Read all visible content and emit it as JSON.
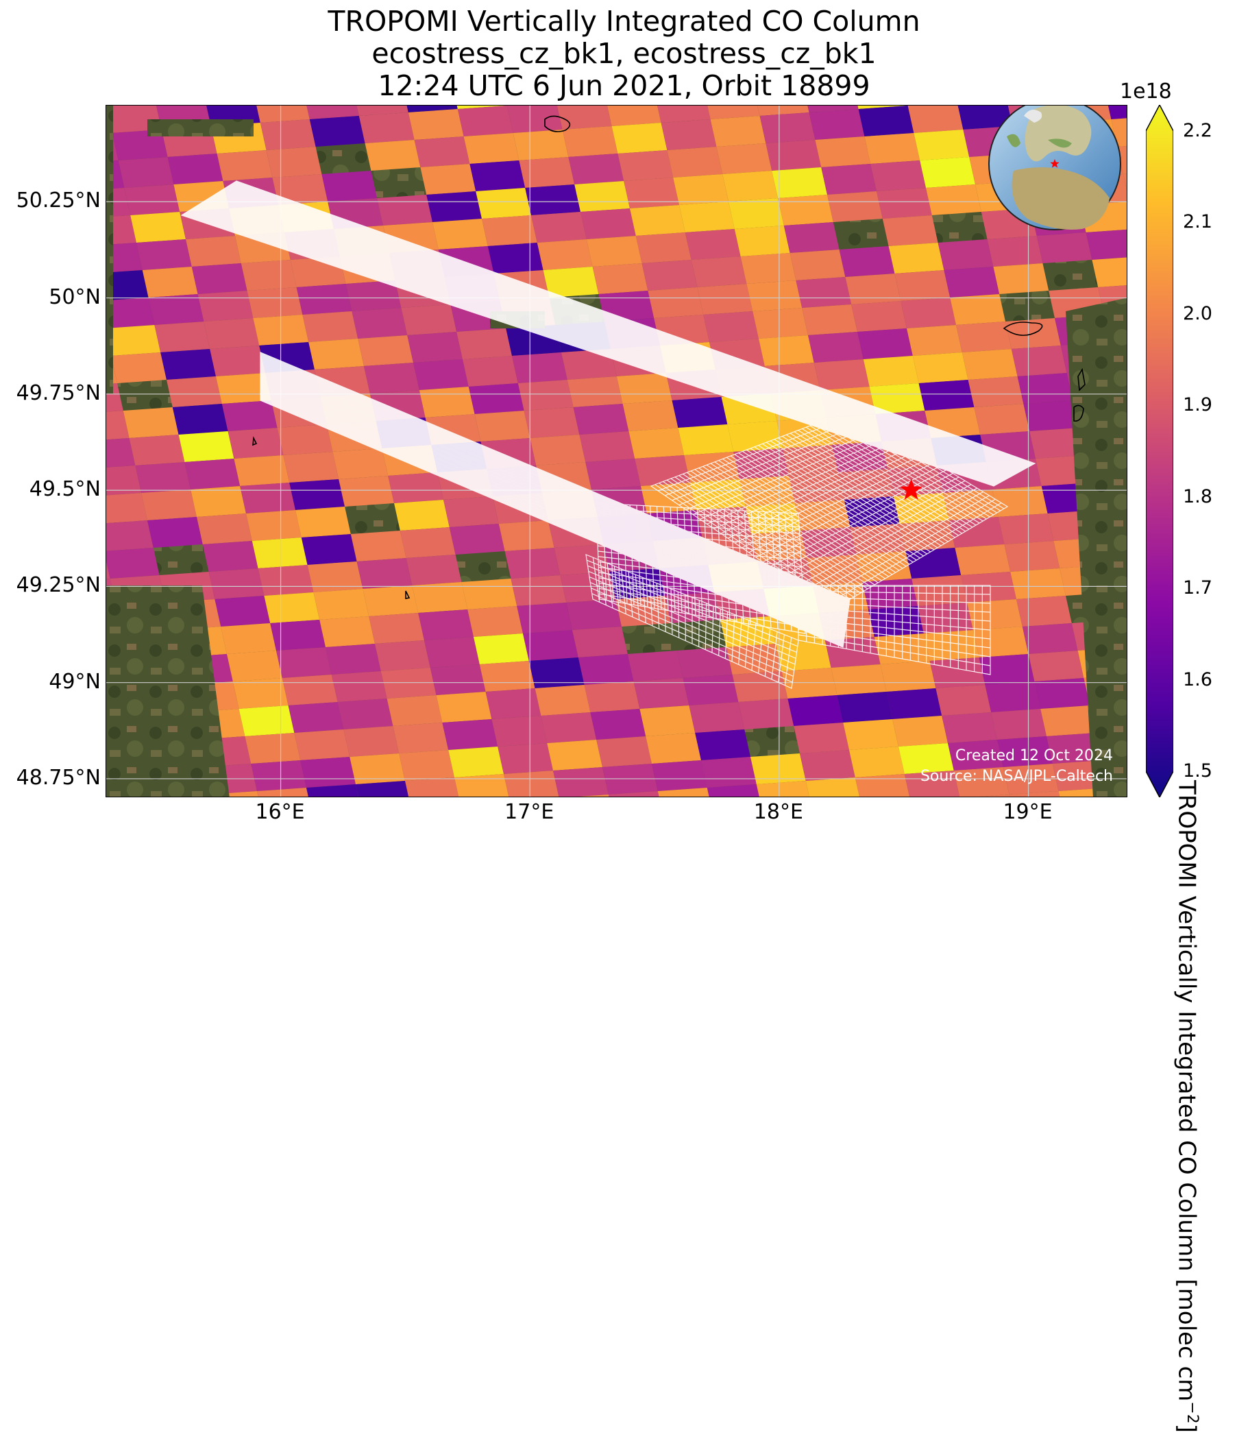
{
  "title": {
    "line1": "TROPOMI Vertically Integrated CO Column",
    "line2": "ecostress_cz_bk1, ecostress_cz_bk1",
    "line3": "12:24 UTC 6 Jun 2021, Orbit 18899"
  },
  "map": {
    "projection": "plate-carree",
    "lon_range": [
      15.3,
      19.4
    ],
    "lat_range": [
      48.7,
      50.5
    ],
    "basemap": "satellite imagery",
    "colormap": "plasma",
    "lat_ticks": [
      "50.25°N",
      "50°N",
      "49.75°N",
      "49.5°N",
      "49.25°N",
      "49°N",
      "48.75°N"
    ],
    "lon_ticks": [
      "16°E",
      "17°E",
      "18°E",
      "19°E"
    ],
    "lat_tick_values": [
      50.25,
      50.0,
      49.75,
      49.5,
      49.25,
      49.0,
      48.75
    ],
    "lon_tick_values": [
      16,
      17,
      18,
      19
    ],
    "gridlines": true,
    "target_marker": {
      "lon": 18.53,
      "lat": 49.5,
      "symbol": "red-star"
    },
    "inset_globe": {
      "marker": "red-star",
      "placement": "top-right"
    },
    "overlay": "ECOSTRESS target footprint grids (white outline)"
  },
  "colorbar": {
    "label": "TROPOMI Vertically Integrated CO Column [molec cm",
    "label_exponent": "−2",
    "label_close": "]",
    "multiplier": "1e18",
    "min": 1.5,
    "max": 2.2,
    "extend": "both",
    "ticks": [
      "2.2",
      "2.1",
      "2.0",
      "1.9",
      "1.8",
      "1.7",
      "1.6",
      "1.5"
    ],
    "tick_values": [
      2.2,
      2.1,
      2.0,
      1.9,
      1.8,
      1.7,
      1.6,
      1.5
    ]
  },
  "credits": {
    "created": "Created 12 Oct 2024",
    "source": "Source: NASA/JPL-Caltech"
  },
  "colors": {
    "plasma_dark": "#0d0887",
    "plasma_mid": "#cc4778",
    "plasma_light": "#f0f921",
    "marker": "#ff0000",
    "overlay_outline": "#ffffff"
  }
}
